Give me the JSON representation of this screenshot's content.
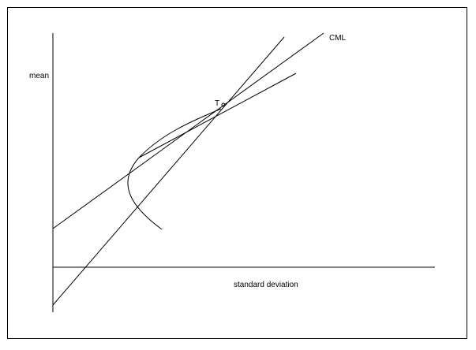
{
  "labels": {
    "y_axis": "mean",
    "x_axis": "standard deviation",
    "cml": "CML",
    "tangency_point": "T"
  },
  "colors": {
    "ink": "#000000",
    "background": "#ffffff"
  }
}
